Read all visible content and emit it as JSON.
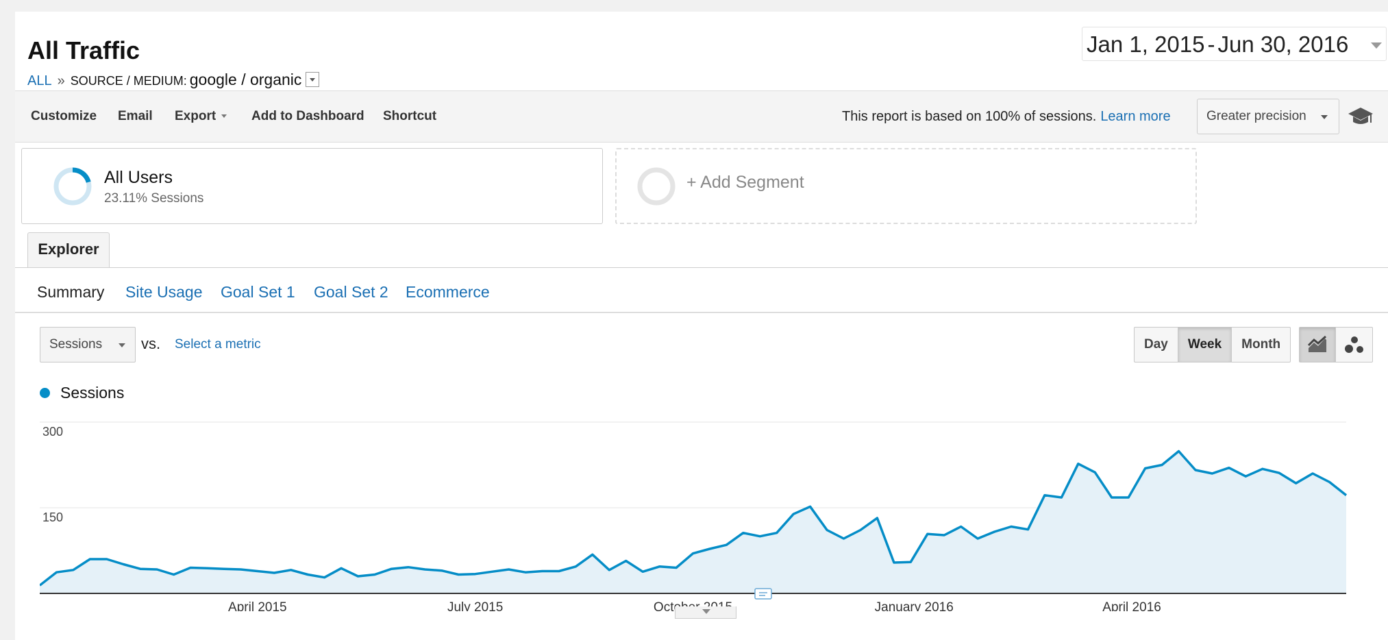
{
  "header": {
    "title": "All Traffic",
    "breadcrumb_root": "ALL",
    "breadcrumb_sep": "»",
    "breadcrumb_key": "SOURCE / MEDIUM:",
    "breadcrumb_value": "google / organic",
    "date_start": "Jan 1, 2015",
    "date_sep": "-",
    "date_end": "Jun 30, 2016"
  },
  "toolbar": {
    "customize": "Customize",
    "email": "Email",
    "export": "Export",
    "add_to_dashboard": "Add to Dashboard",
    "shortcut": "Shortcut",
    "sessions_note": "This report is based on 100% of sessions.",
    "learn_more": "Learn more",
    "precision": "Greater precision"
  },
  "segments": {
    "all_users_name": "All Users",
    "all_users_pct": "23.11% Sessions",
    "add_segment": "+ Add Segment"
  },
  "tabs": {
    "explorer": "Explorer",
    "subtabs": [
      "Summary",
      "Site Usage",
      "Goal Set 1",
      "Goal Set 2",
      "Ecommerce"
    ],
    "active_subtab": "Summary"
  },
  "controls": {
    "metric": "Sessions",
    "vs": "vs.",
    "select_metric": "Select a metric",
    "periods": [
      "Day",
      "Week",
      "Month"
    ],
    "active_period": "Week",
    "views": [
      "line-chart-icon",
      "motion-chart-icon"
    ]
  },
  "colors": {
    "accent": "#058dc7",
    "link": "#1a6fb3",
    "fill": "#e5f1f8"
  },
  "chart_data": {
    "type": "area",
    "series": [
      {
        "name": "Sessions",
        "values": [
          14,
          37,
          41,
          60,
          60,
          51,
          43,
          42,
          33,
          45,
          44,
          43,
          42,
          39,
          36,
          41,
          33,
          28,
          44,
          30,
          33,
          43,
          46,
          42,
          40,
          33,
          34,
          38,
          42,
          37,
          39,
          39,
          47,
          68,
          41,
          57,
          38,
          47,
          45,
          70,
          78,
          85,
          106,
          100,
          106,
          139,
          152,
          111,
          96,
          111,
          132,
          54,
          55,
          104,
          102,
          117,
          96,
          108,
          117,
          112,
          172,
          168,
          227,
          212,
          168,
          168,
          219,
          225,
          249,
          216,
          210,
          220,
          205,
          218,
          211,
          193,
          210,
          195,
          172
        ]
      }
    ],
    "x_tick_labels": [
      "April 2015",
      "July 2015",
      "October 2015",
      "January 2016",
      "April 2016"
    ],
    "y_tick_labels": [
      "300",
      "150"
    ],
    "ylim": [
      0,
      300
    ],
    "grid": true,
    "legend": "top-left"
  }
}
